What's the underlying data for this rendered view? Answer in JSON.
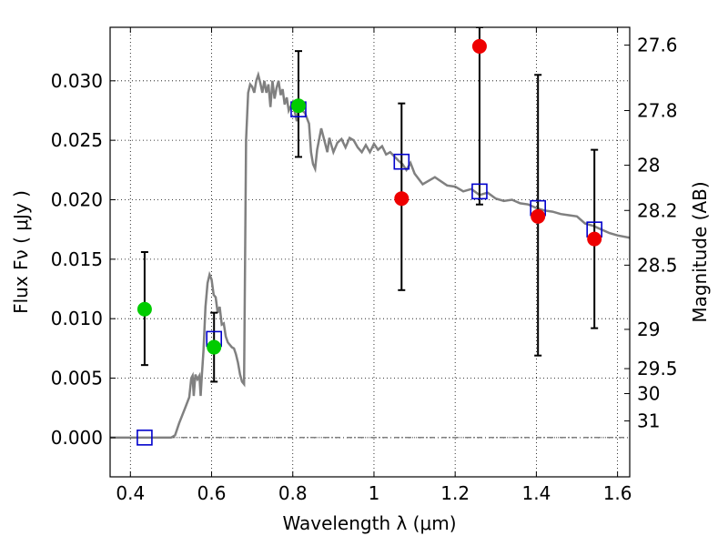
{
  "chart_data": {
    "type": "scatter",
    "xlabel": "Wavelength  λ (μm)",
    "ylabel": "Flux  Fν  ( μJy )",
    "y2label": "Magnitude (AB)",
    "xlim": [
      0.35,
      1.63
    ],
    "ylim": [
      -0.0033,
      0.0345
    ],
    "grid": true,
    "x_ticks": [
      {
        "value": 0.4,
        "label": "0.4"
      },
      {
        "value": 0.6,
        "label": "0.6"
      },
      {
        "value": 0.8,
        "label": "0.8"
      },
      {
        "value": 1.0,
        "label": "1"
      },
      {
        "value": 1.2,
        "label": "1.2"
      },
      {
        "value": 1.4,
        "label": "1.4"
      },
      {
        "value": 1.6,
        "label": "1.6"
      }
    ],
    "y_ticks": [
      {
        "value": 0.0,
        "label": "0.000"
      },
      {
        "value": 0.005,
        "label": "0.005"
      },
      {
        "value": 0.01,
        "label": "0.010"
      },
      {
        "value": 0.015,
        "label": "0.015"
      },
      {
        "value": 0.02,
        "label": "0.020"
      },
      {
        "value": 0.025,
        "label": "0.025"
      },
      {
        "value": 0.03,
        "label": "0.030"
      }
    ],
    "y2_ticks": [
      {
        "flux": 0.033,
        "label": "27.6"
      },
      {
        "flux": 0.0275,
        "label": "27.8"
      },
      {
        "flux": 0.0229,
        "label": "28"
      },
      {
        "flux": 0.0191,
        "label": "28.2"
      },
      {
        "flux": 0.0145,
        "label": "28.5"
      },
      {
        "flux": 0.0091,
        "label": "29"
      },
      {
        "flux": 0.0058,
        "label": "29.5"
      },
      {
        "flux": 0.0037,
        "label": "30"
      },
      {
        "flux": 0.0014,
        "label": "31"
      }
    ],
    "model_spectrum": {
      "color": "#808080",
      "x": [
        0.35,
        0.5,
        0.51,
        0.52,
        0.535,
        0.545,
        0.55,
        0.553,
        0.556,
        0.56,
        0.565,
        0.57,
        0.573,
        0.576,
        0.58,
        0.585,
        0.59,
        0.595,
        0.6,
        0.605,
        0.61,
        0.615,
        0.62,
        0.625,
        0.63,
        0.635,
        0.64,
        0.645,
        0.65,
        0.655,
        0.66,
        0.665,
        0.67,
        0.675,
        0.68,
        0.685,
        0.69,
        0.695,
        0.7,
        0.705,
        0.71,
        0.715,
        0.72,
        0.725,
        0.73,
        0.735,
        0.74,
        0.745,
        0.75,
        0.755,
        0.76,
        0.765,
        0.77,
        0.775,
        0.78,
        0.785,
        0.79,
        0.8,
        0.81,
        0.815,
        0.82,
        0.83,
        0.84,
        0.845,
        0.85,
        0.855,
        0.86,
        0.87,
        0.88,
        0.885,
        0.89,
        0.895,
        0.9,
        0.91,
        0.92,
        0.93,
        0.94,
        0.95,
        0.96,
        0.97,
        0.98,
        0.99,
        1.0,
        1.01,
        1.02,
        1.03,
        1.04,
        1.06,
        1.07,
        1.08,
        1.09,
        1.1,
        1.12,
        1.15,
        1.18,
        1.2,
        1.22,
        1.24,
        1.26,
        1.28,
        1.3,
        1.32,
        1.34,
        1.36,
        1.38,
        1.4,
        1.42,
        1.44,
        1.46,
        1.48,
        1.5,
        1.52,
        1.54,
        1.56,
        1.58,
        1.6,
        1.63
      ],
      "y": [
        0.0,
        0.0,
        0.0002,
        0.0012,
        0.0025,
        0.0034,
        0.005,
        0.0052,
        0.0035,
        0.0053,
        0.0049,
        0.0052,
        0.0035,
        0.0052,
        0.0073,
        0.011,
        0.013,
        0.0137,
        0.0133,
        0.012,
        0.0118,
        0.0105,
        0.011,
        0.0095,
        0.0096,
        0.0085,
        0.008,
        0.0078,
        0.0076,
        0.0075,
        0.007,
        0.0063,
        0.0053,
        0.0047,
        0.0045,
        0.025,
        0.029,
        0.0297,
        0.0295,
        0.029,
        0.03,
        0.0305,
        0.0298,
        0.029,
        0.03,
        0.029,
        0.0297,
        0.0278,
        0.03,
        0.0285,
        0.0294,
        0.03,
        0.0288,
        0.0293,
        0.028,
        0.0286,
        0.0275,
        0.0282,
        0.0266,
        0.028,
        0.0276,
        0.0273,
        0.0264,
        0.024,
        0.023,
        0.0226,
        0.0242,
        0.026,
        0.0247,
        0.024,
        0.0252,
        0.0246,
        0.024,
        0.0248,
        0.0251,
        0.0244,
        0.0252,
        0.025,
        0.0244,
        0.024,
        0.0246,
        0.024,
        0.0247,
        0.0242,
        0.0245,
        0.0238,
        0.024,
        0.0233,
        0.023,
        0.0225,
        0.0231,
        0.0222,
        0.0213,
        0.0219,
        0.0212,
        0.0211,
        0.0207,
        0.0209,
        0.0204,
        0.0206,
        0.0201,
        0.0199,
        0.02,
        0.0197,
        0.0196,
        0.0193,
        0.0191,
        0.019,
        0.0188,
        0.0187,
        0.0186,
        0.018,
        0.0178,
        0.0175,
        0.0172,
        0.017,
        0.0168
      ]
    },
    "model_photometry": {
      "marker": "open-square",
      "color": "#0000cc",
      "x": [
        0.435,
        0.606,
        0.814,
        1.068,
        1.26,
        1.404,
        1.543
      ],
      "y": [
        0.0,
        0.0083,
        0.0276,
        0.0232,
        0.0207,
        0.0193,
        0.0175
      ]
    },
    "detections": {
      "marker": "filled-circle",
      "color": "#00cc00",
      "x": [
        0.435,
        0.606,
        0.814
      ],
      "y": [
        0.0108,
        0.0076,
        0.0279
      ],
      "yerr_low": [
        0.0061,
        0.0047,
        0.0236
      ],
      "yerr_high": [
        0.0156,
        0.0105,
        0.0325
      ]
    },
    "nondetections": {
      "marker": "filled-circle",
      "color": "#ee0000",
      "x": [
        1.068,
        1.26,
        1.404,
        1.543
      ],
      "y": [
        0.0201,
        0.0329,
        0.0186,
        0.0167
      ],
      "yerr_low": [
        0.0124,
        0.0196,
        0.0069,
        0.0092
      ],
      "yerr_high": [
        0.0281,
        0.0345,
        0.0305,
        0.0242
      ]
    }
  }
}
